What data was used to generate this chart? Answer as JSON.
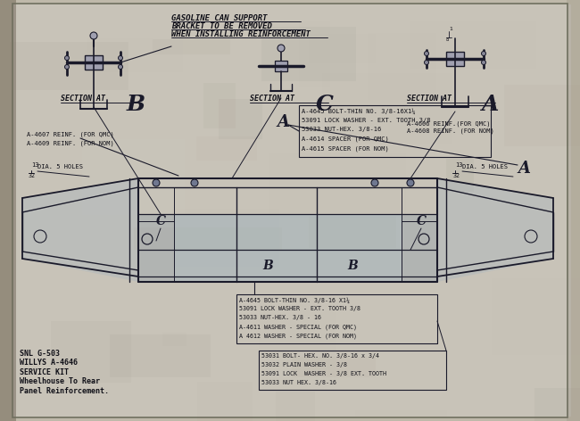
{
  "figsize": [
    6.5,
    4.72
  ],
  "dpi": 100,
  "bg_outer": "#b0a890",
  "bg_paper": "#c8c0b0",
  "bg_left_edge": "#a09888",
  "line_color": "#1a1a2a",
  "text_color": "#101018",
  "title_lines": [
    "GASOLINE CAN SUPPORT",
    "BRACKET TO BE REMOVED",
    "WHEN INSTALLING REINFORCEMENT"
  ],
  "section_b": "SECTION AT",
  "section_c": "SECTION AT",
  "section_a": "SECTION AT",
  "left_parts": "A-4607 REINF. (FOR QMC)\nA-4609 REINF. (FOR NOM)",
  "right_parts": "A-4606 REINF.(FOR QMC)\nA-4608 REINF. (FOR NOM)",
  "center_box_lines": [
    "A-4645 BOLT-THIN NO. 3/8-16X1¼",
    "53091 LOCK WASHER - EXT. TOOTH 3/8",
    "53033 NUT-HEX. 3/8-16",
    "A-4614 SPACER (FOR QMC)",
    "A-4615 SPACER (FOR NOM)"
  ],
  "lower_box1_lines": [
    "A-4645 BOLT-THIN NO. 3/8-16 X1¼",
    "53091 LOCK WASHER - EXT. TOOTH 3/8",
    "53033 NUT-HEX. 3/8 - 16",
    "A-4611 WASHER - SPECIAL (FOR QMC)",
    "A 4612 WASHER - SPECIAL (FOR NOM)"
  ],
  "lower_box2_lines": [
    "53031 BOLT- HEX. NO. 3/8-16 x 3/4",
    "53032 PLAIN WASHER - 3/8",
    "53091 LOCK  WASHER - 3/8 EXT. TOOTH",
    "53033 NUT HEX. 3/8-16"
  ],
  "snl_text": "SNL G-503\nWILLYS A-4646\nSERVICE KIT\nWheelhouse To Rear\nPanel Reinforcement.",
  "holes_text": "13 DIA. 5 HOLES",
  "holes_frac": "32"
}
